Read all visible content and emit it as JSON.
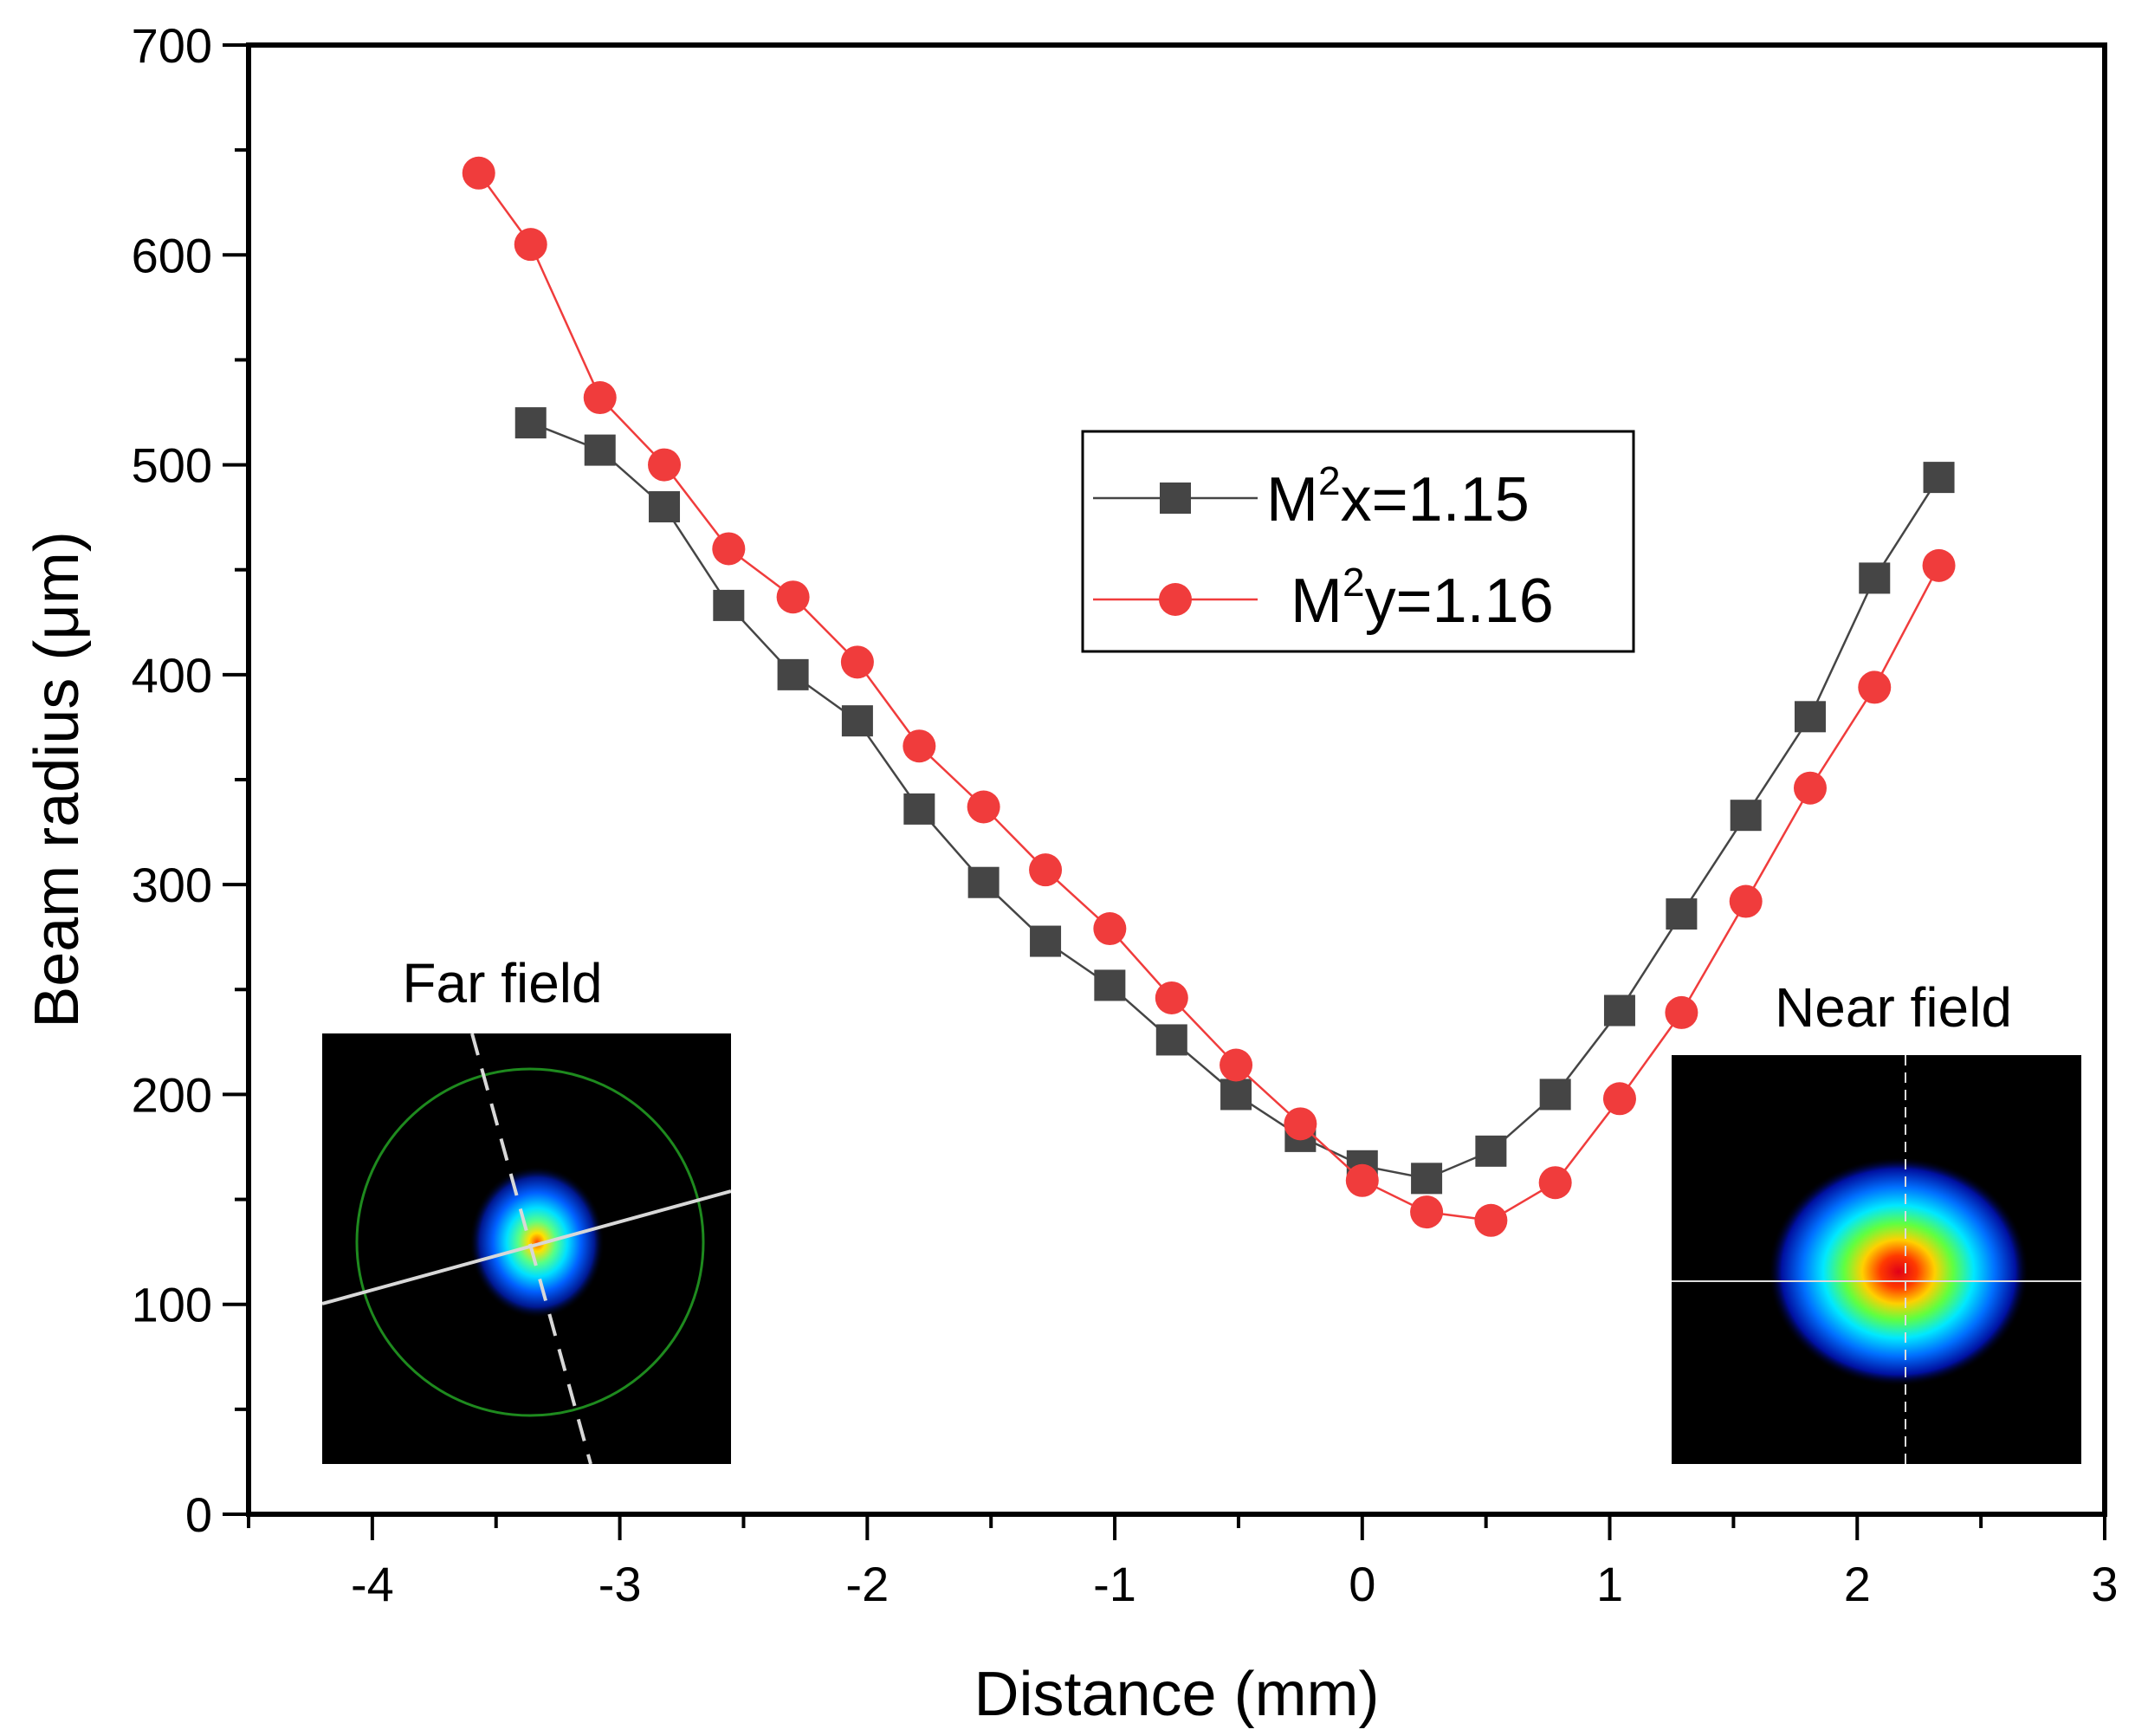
{
  "chart_data": {
    "type": "line",
    "title": "",
    "xlabel": "Distance (mm)",
    "ylabel": "Beam radius (μm)",
    "xlim": [
      -4.5,
      3
    ],
    "ylim": [
      0,
      700
    ],
    "xticks": [
      -4,
      -3,
      -2,
      -1,
      0,
      1,
      2,
      3
    ],
    "yticks": [
      0,
      100,
      200,
      300,
      400,
      500,
      600,
      700
    ],
    "grid": false,
    "legend_position": "top-center",
    "series": [
      {
        "name": "M²x=1.15",
        "legend_main": "M",
        "legend_sup": "2",
        "legend_rest": "x=1.15",
        "color": "#454545",
        "marker": "square",
        "x": [
          -3.36,
          -3.08,
          -2.82,
          -2.56,
          -2.3,
          -2.04,
          -1.79,
          -1.53,
          -1.28,
          -1.02,
          -0.77,
          -0.51,
          -0.25,
          0.0,
          0.26,
          0.52,
          0.78,
          1.04,
          1.29,
          1.55,
          1.81,
          2.07,
          2.33
        ],
        "y": [
          520,
          507,
          480,
          433,
          400,
          378,
          336,
          301,
          273,
          252,
          226,
          200,
          180,
          166,
          160,
          173,
          200,
          240,
          286,
          333,
          380,
          446,
          494
        ]
      },
      {
        "name": "M²y=1.16",
        "legend_main": "M",
        "legend_sup": "2",
        "legend_rest": "y=1.16",
        "color": "#f03c3c",
        "marker": "circle",
        "x": [
          -3.57,
          -3.36,
          -3.08,
          -2.82,
          -2.56,
          -2.3,
          -2.04,
          -1.79,
          -1.53,
          -1.28,
          -1.02,
          -0.77,
          -0.51,
          -0.25,
          0.0,
          0.26,
          0.52,
          0.78,
          1.04,
          1.29,
          1.55,
          1.81,
          2.07,
          2.33
        ],
        "y": [
          639,
          605,
          532,
          500,
          460,
          437,
          406,
          366,
          337,
          307,
          279,
          246,
          214,
          186,
          159,
          144,
          140,
          158,
          198,
          239,
          292,
          346,
          394,
          452
        ]
      }
    ],
    "annotations": [
      "Far field",
      "Near field"
    ]
  },
  "insets": {
    "far_field_label": "Far field",
    "near_field_label": "Near field"
  }
}
